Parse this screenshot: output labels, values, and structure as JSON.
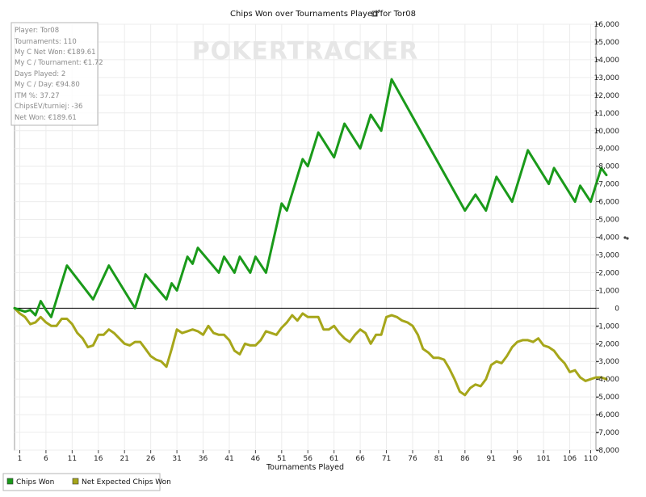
{
  "chart_data": {
    "type": "line",
    "title": "Chips Won over Tournaments Played for",
    "player_label": "Tor08",
    "xlabel": "Tournaments Played",
    "ylabel": "",
    "xlim": [
      0,
      111
    ],
    "ylim": [
      -8000,
      16000
    ],
    "x_ticks": [
      1,
      6,
      11,
      16,
      21,
      26,
      31,
      36,
      41,
      46,
      51,
      56,
      61,
      66,
      71,
      76,
      81,
      86,
      91,
      96,
      101,
      106,
      110
    ],
    "y_ticks": [
      16000,
      15000,
      14000,
      13000,
      12000,
      11000,
      10000,
      9000,
      8000,
      7000,
      6000,
      5000,
      4000,
      3000,
      2000,
      1000,
      0,
      -1000,
      -2000,
      -3000,
      -4000,
      -5000,
      -6000,
      -7000,
      -8000
    ],
    "y_tick_labels": [
      "16,000",
      "15,000",
      "14,000",
      "13,000",
      "12,000",
      "11,000",
      "10,000",
      "9,000",
      "8,000",
      "7,000",
      "6,000",
      "5,000",
      "4,000",
      "3,000",
      "2,000",
      "1,000",
      "0",
      "-1,000",
      "-2,000",
      "-3,000",
      "-4,000",
      "-5,000",
      "-6,000",
      "-7,000",
      "-8,000"
    ],
    "grid": true,
    "legend_placement": "bottom-left",
    "series": [
      {
        "name": "Chips Won",
        "color": "#1a9a1a",
        "points": [
          [
            0,
            0
          ],
          [
            2,
            -200
          ],
          [
            3,
            -100
          ],
          [
            4,
            -400
          ],
          [
            5,
            400
          ],
          [
            6,
            -100
          ],
          [
            7,
            -500
          ],
          [
            10,
            2400
          ],
          [
            15,
            500
          ],
          [
            18,
            2400
          ],
          [
            23,
            0
          ],
          [
            25,
            1900
          ],
          [
            29,
            500
          ],
          [
            30,
            1400
          ],
          [
            31,
            1000
          ],
          [
            33,
            2900
          ],
          [
            34,
            2500
          ],
          [
            35,
            3400
          ],
          [
            39,
            2000
          ],
          [
            40,
            2900
          ],
          [
            42,
            2000
          ],
          [
            43,
            2900
          ],
          [
            45,
            2000
          ],
          [
            46,
            2900
          ],
          [
            48,
            2000
          ],
          [
            51,
            5900
          ],
          [
            52,
            5500
          ],
          [
            55,
            8400
          ],
          [
            56,
            8000
          ],
          [
            58,
            9900
          ],
          [
            61,
            8500
          ],
          [
            63,
            10400
          ],
          [
            66,
            9000
          ],
          [
            68,
            10900
          ],
          [
            70,
            10000
          ],
          [
            72,
            12900
          ],
          [
            86,
            5500
          ],
          [
            88,
            6400
          ],
          [
            90,
            5500
          ],
          [
            92,
            7400
          ],
          [
            95,
            6000
          ],
          [
            98,
            8900
          ],
          [
            102,
            7000
          ],
          [
            103,
            7900
          ],
          [
            107,
            6000
          ],
          [
            108,
            6900
          ],
          [
            110,
            6000
          ],
          [
            112,
            7900
          ],
          [
            113,
            7500
          ]
        ]
      },
      {
        "name": "Net Expected Chips Won",
        "color": "#a6a61a",
        "points": [
          [
            0,
            0
          ],
          [
            1,
            -300
          ],
          [
            2,
            -500
          ],
          [
            3,
            -900
          ],
          [
            4,
            -800
          ],
          [
            5,
            -500
          ],
          [
            6,
            -800
          ],
          [
            7,
            -1000
          ],
          [
            8,
            -1000
          ],
          [
            9,
            -600
          ],
          [
            10,
            -600
          ],
          [
            11,
            -900
          ],
          [
            12,
            -1400
          ],
          [
            13,
            -1700
          ],
          [
            14,
            -2200
          ],
          [
            15,
            -2100
          ],
          [
            16,
            -1500
          ],
          [
            17,
            -1500
          ],
          [
            18,
            -1200
          ],
          [
            19,
            -1400
          ],
          [
            20,
            -1700
          ],
          [
            21,
            -2000
          ],
          [
            22,
            -2100
          ],
          [
            23,
            -1900
          ],
          [
            24,
            -1900
          ],
          [
            25,
            -2300
          ],
          [
            26,
            -2700
          ],
          [
            27,
            -2900
          ],
          [
            28,
            -3000
          ],
          [
            29,
            -3300
          ],
          [
            30,
            -2300
          ],
          [
            31,
            -1200
          ],
          [
            32,
            -1400
          ],
          [
            33,
            -1300
          ],
          [
            34,
            -1200
          ],
          [
            35,
            -1300
          ],
          [
            36,
            -1500
          ],
          [
            37,
            -1000
          ],
          [
            38,
            -1400
          ],
          [
            39,
            -1500
          ],
          [
            40,
            -1500
          ],
          [
            41,
            -1800
          ],
          [
            42,
            -2400
          ],
          [
            43,
            -2600
          ],
          [
            44,
            -2000
          ],
          [
            45,
            -2100
          ],
          [
            46,
            -2100
          ],
          [
            47,
            -1800
          ],
          [
            48,
            -1300
          ],
          [
            49,
            -1400
          ],
          [
            50,
            -1500
          ],
          [
            51,
            -1100
          ],
          [
            52,
            -800
          ],
          [
            53,
            -400
          ],
          [
            54,
            -700
          ],
          [
            55,
            -300
          ],
          [
            56,
            -500
          ],
          [
            57,
            -500
          ],
          [
            58,
            -500
          ],
          [
            59,
            -1200
          ],
          [
            60,
            -1200
          ],
          [
            61,
            -1000
          ],
          [
            62,
            -1400
          ],
          [
            63,
            -1700
          ],
          [
            64,
            -1900
          ],
          [
            65,
            -1500
          ],
          [
            66,
            -1200
          ],
          [
            67,
            -1400
          ],
          [
            68,
            -2000
          ],
          [
            69,
            -1500
          ],
          [
            70,
            -1500
          ],
          [
            71,
            -500
          ],
          [
            72,
            -400
          ],
          [
            73,
            -500
          ],
          [
            74,
            -700
          ],
          [
            75,
            -800
          ],
          [
            76,
            -1000
          ],
          [
            77,
            -1500
          ],
          [
            78,
            -2300
          ],
          [
            79,
            -2500
          ],
          [
            80,
            -2800
          ],
          [
            81,
            -2800
          ],
          [
            82,
            -2900
          ],
          [
            83,
            -3400
          ],
          [
            84,
            -4000
          ],
          [
            85,
            -4700
          ],
          [
            86,
            -4900
          ],
          [
            87,
            -4500
          ],
          [
            88,
            -4300
          ],
          [
            89,
            -4400
          ],
          [
            90,
            -4000
          ],
          [
            91,
            -3200
          ],
          [
            92,
            -3000
          ],
          [
            93,
            -3100
          ],
          [
            94,
            -2700
          ],
          [
            95,
            -2200
          ],
          [
            96,
            -1900
          ],
          [
            97,
            -1800
          ],
          [
            98,
            -1800
          ],
          [
            99,
            -1900
          ],
          [
            100,
            -1700
          ],
          [
            101,
            -2100
          ],
          [
            102,
            -2200
          ],
          [
            103,
            -2400
          ],
          [
            104,
            -2800
          ],
          [
            105,
            -3100
          ],
          [
            106,
            -3600
          ],
          [
            107,
            -3500
          ],
          [
            108,
            -3900
          ],
          [
            109,
            -4100
          ],
          [
            110,
            -4000
          ],
          [
            111,
            -3900
          ],
          [
            112,
            -3900
          ],
          [
            113,
            -4000
          ]
        ]
      }
    ]
  },
  "stats_box": {
    "lines": [
      "Player: Tor08",
      "Tournaments: 110",
      "My C Net Won: €189.61",
      "My C / Tournament: €1.72",
      "Days Played: 2",
      "My C / Day: €94.80",
      "ITM %: 37.27",
      "ChipsEV/turniej: -36",
      "Net Won: €189.61"
    ]
  },
  "watermark": "POKERTRACKER",
  "colors": {
    "chips_won": "#1a9a1a",
    "net_expected": "#a6a61a",
    "grid": "#ececec",
    "zero_line": "#000000"
  },
  "icons": {
    "title_icon": "chip-stack-icon",
    "side_icon": "chips-icon"
  }
}
